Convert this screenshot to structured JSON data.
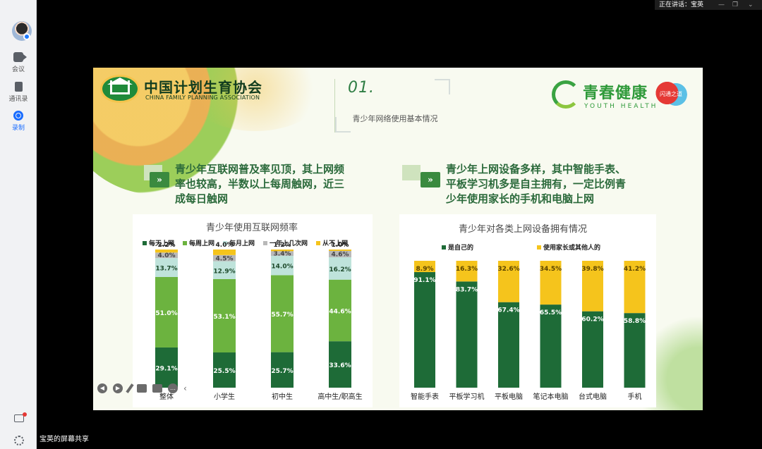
{
  "sidebar": {
    "items": [
      {
        "label": "会议",
        "icon": "video-icon"
      },
      {
        "label": "通讯录",
        "icon": "contacts-icon"
      },
      {
        "label": "录制",
        "icon": "record-icon",
        "active": true
      }
    ]
  },
  "speaker": {
    "label": "正在讲话：宝英"
  },
  "share_label": "宝英的屏幕共享",
  "slide": {
    "org_cn": "中国计划生育协会",
    "org_en": "CHINA FAMILY PLANNING ASSOCIATION",
    "section_num": "01.",
    "section_title": "青少年网络使用基本情况",
    "brand_cn": "青春健康",
    "brand_en": "YOUTH HEALTH",
    "partner_text": "闪通之道",
    "left_headline": [
      "青少年互联网普及率见顶，其上网频",
      "率也较高，半数以上每周触网，近三",
      "成每日触网"
    ],
    "right_headline": [
      "青少年上网设备多样，其中智能手表、",
      "平板学习机多是自主拥有，一定比例青",
      "少年使用家长的手机和电脑上网"
    ],
    "headline_icon": "»"
  },
  "chart_data": [
    {
      "type": "bar",
      "stacked": true,
      "title": "青少年使用互联网频率",
      "categories": [
        "整体",
        "小学生",
        "初中生",
        "高中生/职高生"
      ],
      "series": [
        {
          "name": "每天上网",
          "color": "#1e6b37",
          "values": [
            29.1,
            25.5,
            25.7,
            33.6
          ],
          "labels": [
            "29.1%",
            "25.5%",
            "25.7%",
            "33.6%"
          ]
        },
        {
          "name": "每周上网",
          "color": "#6cb33f",
          "values": [
            51.0,
            53.1,
            55.7,
            44.6
          ],
          "labels": [
            "51.0%",
            "53.1%",
            "55.7%",
            "44.6%"
          ]
        },
        {
          "name": "每月上网",
          "color": "#bfe3db",
          "values": [
            13.7,
            12.9,
            14.0,
            16.2
          ],
          "labels": [
            "13.7%",
            "12.9%",
            "14.0%",
            "16.2%"
          ]
        },
        {
          "name": "一年上几次网",
          "color": "#b9b9b9",
          "values": [
            4.0,
            4.5,
            3.4,
            4.6
          ],
          "labels": [
            "4.0%",
            "4.5%",
            "3.4%",
            "4.6%"
          ]
        },
        {
          "name": "从不上网",
          "color": "#f5c41c",
          "values": [
            2.2,
            4.0,
            1.2,
            1.0
          ],
          "labels": [
            "2.2%",
            "4.0%",
            "1.2%",
            "1.0%"
          ]
        }
      ],
      "ylim": [
        0,
        100
      ]
    },
    {
      "type": "bar",
      "stacked": true,
      "title": "青少年对各类上网设备拥有情况",
      "categories": [
        "智能手表",
        "平板学习机",
        "平板电脑",
        "笔记本电脑",
        "台式电脑",
        "手机"
      ],
      "series": [
        {
          "name": "是自己的",
          "color": "#1e6b37",
          "values": [
            91.1,
            83.7,
            67.4,
            65.5,
            60.2,
            58.8
          ],
          "labels": [
            "91.1%",
            "83.7%",
            "67.4%",
            "65.5%",
            "60.2%",
            "58.8%"
          ]
        },
        {
          "name": "使用家长或其他人的",
          "color": "#f5c41c",
          "values": [
            8.9,
            16.3,
            32.6,
            34.5,
            39.8,
            41.2
          ],
          "labels": [
            "8.9%",
            "16.3%",
            "32.6%",
            "34.5%",
            "39.8%",
            "41.2%"
          ]
        }
      ],
      "ylim": [
        0,
        100
      ]
    }
  ]
}
